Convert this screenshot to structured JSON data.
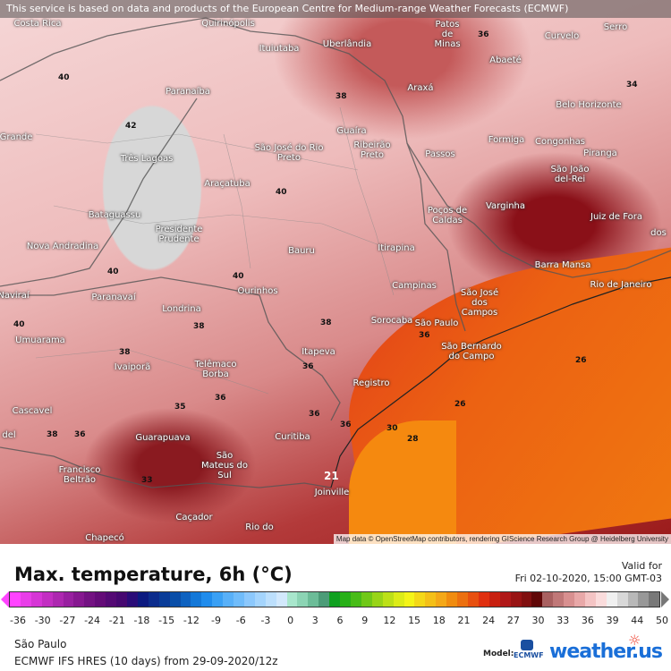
{
  "attribution_top": "This service is based on data and products of the European Centre for Medium-range Weather Forecasts (ECMWF)",
  "attribution_bottom": "Map data © OpenStreetMap contributors, rendering GIScience Research Group @ Heidelberg University",
  "cities": [
    "Costa Rica",
    "Quirinópolis",
    "Patos de Minas",
    "Uberlândia",
    "Ituiutaba",
    "Curvelo",
    "Serro",
    "Abaeté",
    "Paranaíba",
    "Araxá",
    "Belo Horizonte",
    "Guaíra",
    "Formiga",
    "Congonhas",
    "Passos",
    "São José do Rio Preto",
    "Ribeirão Preto",
    "Três Lagoas",
    "Piranga",
    "São João del-Rei",
    "Araçatuba",
    "Varginha",
    "Poços de Caldas",
    "Juiz de Fora",
    "Bataguassu",
    "Presidente Prudente",
    "Nova Andradina",
    "Bauru",
    "Itirapina",
    "Barra Mansa",
    "Ourinhos",
    "Paranavaí",
    "Campinas",
    "São José dos Campos",
    "Rio de Janeiro",
    "Londrina",
    "Sorocaba",
    "São Paulo",
    "Umuarama",
    "Itapeva",
    "São Bernardo do Campo",
    "Ivaiporã",
    "Telêmaco Borba",
    "Registro",
    "Cascavel",
    "Curitiba",
    "Guarapuava",
    "São Mateus do Sul",
    "Francisco Beltrão",
    "Joinville",
    "Caçador",
    "Chapecó",
    "Rio do",
    "Naviraí",
    "Grande",
    "del",
    "Curvelo",
    "dos"
  ],
  "isotherm_labels": [
    "40",
    "42",
    "38",
    "40",
    "40",
    "40",
    "38",
    "38",
    "36",
    "36",
    "36",
    "36",
    "36",
    "35",
    "38",
    "38",
    "36",
    "34",
    "26",
    "26",
    "28",
    "30",
    "21",
    "33",
    "40",
    "36"
  ],
  "title": "Max. temperature, 6h (°C)",
  "valid_label": "Valid for",
  "valid_time": "Fri 02-10-2020, 15:00 GMT-03",
  "colorbar": {
    "ticks": [
      "-36",
      "-30",
      "-27",
      "-24",
      "-21",
      "-18",
      "-15",
      "-12",
      "-9",
      "-6",
      "-3",
      "0",
      "3",
      "6",
      "9",
      "12",
      "15",
      "18",
      "21",
      "24",
      "27",
      "30",
      "33",
      "36",
      "39",
      "44",
      "50"
    ],
    "colors": [
      "#ff44ff",
      "#e83ee8",
      "#d636d6",
      "#c22fc2",
      "#ad28b0",
      "#9820a0",
      "#861890",
      "#731282",
      "#640c78",
      "#540a74",
      "#460870",
      "#2a0c78",
      "#0c1a80",
      "#0c2c8c",
      "#0a3c98",
      "#0a4ea8",
      "#0e62c0",
      "#1478d8",
      "#208cec",
      "#3aa0f4",
      "#58b0f8",
      "#70bcfa",
      "#8cc8fc",
      "#a4d4fc",
      "#bcdffc",
      "#d2e8fc",
      "#a8e6cc",
      "#8cd4b4",
      "#6cbc98",
      "#4c9c78",
      "#10a020",
      "#28b018",
      "#48bc18",
      "#70c818",
      "#98d418",
      "#bce018",
      "#dcec18",
      "#f4f418",
      "#f4d818",
      "#f4c018",
      "#f4a818",
      "#f08c10",
      "#ec7010",
      "#e85010",
      "#e03010",
      "#c82010",
      "#b01818",
      "#981414",
      "#801010",
      "#600808",
      "#a86060",
      "#c07878",
      "#d89090",
      "#e8a8a8",
      "#f4c4c4",
      "#fadcdc",
      "#f0f0f0",
      "#d8d8d8",
      "#b8b8b8",
      "#989898",
      "#787878"
    ]
  },
  "location": "São Paulo",
  "model_run": "ECMWF IFS HRES (10 days) from 29-09-2020/12z",
  "model_label": "Model:",
  "ecmwf_logo": "ECMWF",
  "brand": "weather.us"
}
